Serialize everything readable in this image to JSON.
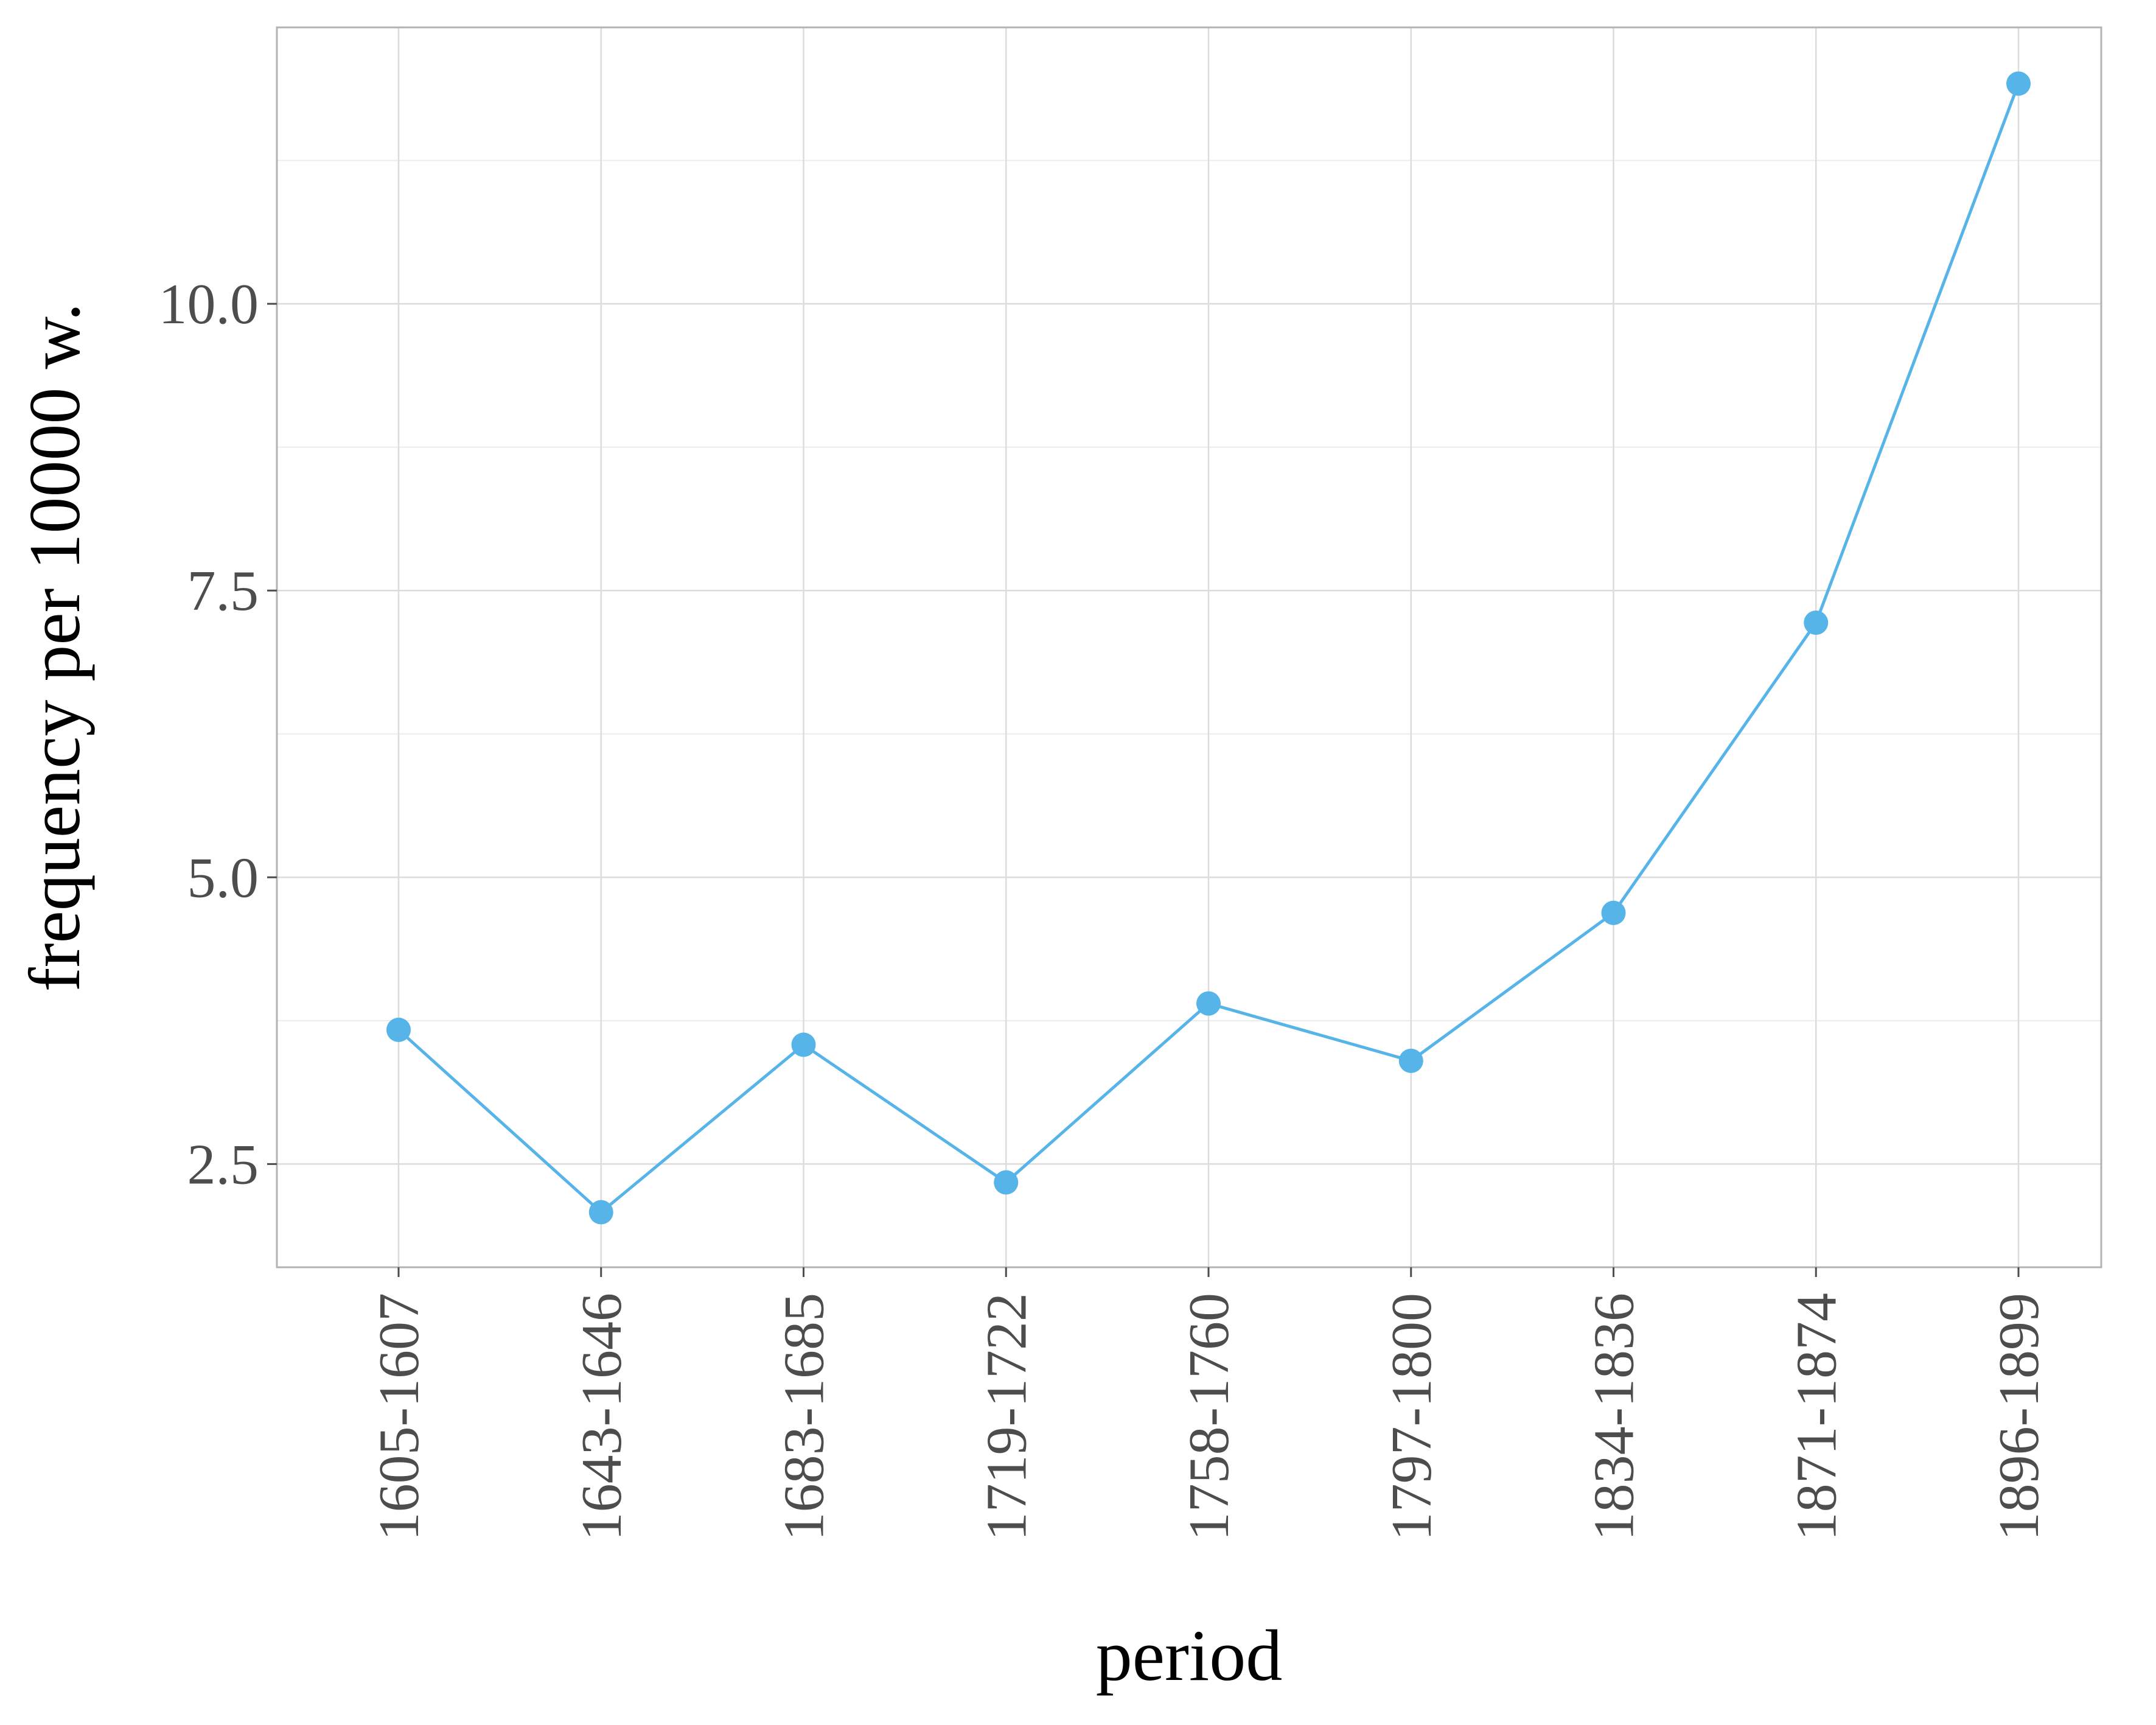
{
  "chart_data": {
    "type": "line",
    "categories": [
      "1605-1607",
      "1643-1646",
      "1683-1685",
      "1719-1722",
      "1758-1760",
      "1797-1800",
      "1834-1836",
      "1871-1874",
      "1896-1899"
    ],
    "series": [
      {
        "values": [
          3.67,
          2.08,
          3.54,
          2.34,
          3.9,
          3.4,
          4.69,
          7.22,
          11.92
        ],
        "color": "#56b4e9"
      }
    ],
    "title": "",
    "xlabel": "period",
    "ylabel": "frequency per 10000 w.",
    "ylim": [
      1.6,
      12.41
    ],
    "yticks": [
      2.5,
      5.0,
      7.5,
      10.0
    ],
    "ytick_labels": [
      "2.5",
      "5.0",
      "7.5",
      "10.0"
    ],
    "grid": true,
    "legend": "none"
  }
}
